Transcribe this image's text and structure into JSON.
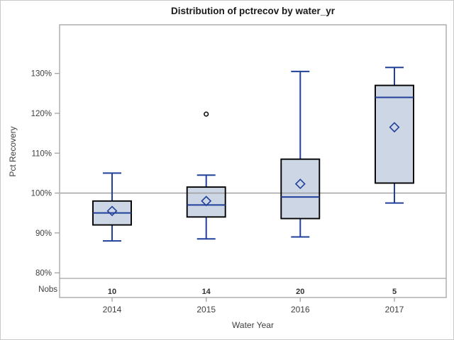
{
  "chart_data": {
    "type": "box",
    "title": "Distribution of pctrecov by water_yr",
    "xlabel": "Water Year",
    "ylabel": "Pct Recovery",
    "nobs_label": "Nobs",
    "categories": [
      "2014",
      "2015",
      "2016",
      "2017"
    ],
    "y_ticks": [
      {
        "value": 80,
        "label": "80%"
      },
      {
        "value": 90,
        "label": "90%"
      },
      {
        "value": 100,
        "label": "100%"
      },
      {
        "value": 110,
        "label": "110%"
      },
      {
        "value": 120,
        "label": "120%"
      },
      {
        "value": 130,
        "label": "130%"
      }
    ],
    "ylim": [
      78.6,
      142.2
    ],
    "reference_line": 100,
    "grid": "off",
    "legend": "none",
    "series": [
      {
        "category": "2014",
        "nobs": "10",
        "whisker_low": 88,
        "q1": 92,
        "median": 95,
        "q3": 98,
        "whisker_high": 105,
        "mean": 95.5,
        "outliers": []
      },
      {
        "category": "2015",
        "nobs": "14",
        "whisker_low": 88.5,
        "q1": 94,
        "median": 97,
        "q3": 101.5,
        "whisker_high": 104.5,
        "mean": 98,
        "outliers": [
          119.8
        ]
      },
      {
        "category": "2016",
        "nobs": "20",
        "whisker_low": 89,
        "q1": 93.6,
        "median": 99,
        "q3": 108.5,
        "whisker_high": 130.5,
        "mean": 102.3,
        "outliers": []
      },
      {
        "category": "2017",
        "nobs": "5",
        "whisker_low": 97.5,
        "q1": 102.5,
        "median": 124,
        "q3": 127,
        "whisker_high": 131.5,
        "mean": 116.5,
        "outliers": []
      }
    ],
    "colors": {
      "box_fill": "#ccd6e4",
      "box_border": "#000000",
      "line_blue": "#21409a",
      "frame_gray": "#a3a3a3",
      "reference_gray": "#999999",
      "outlier": "#000000"
    }
  }
}
